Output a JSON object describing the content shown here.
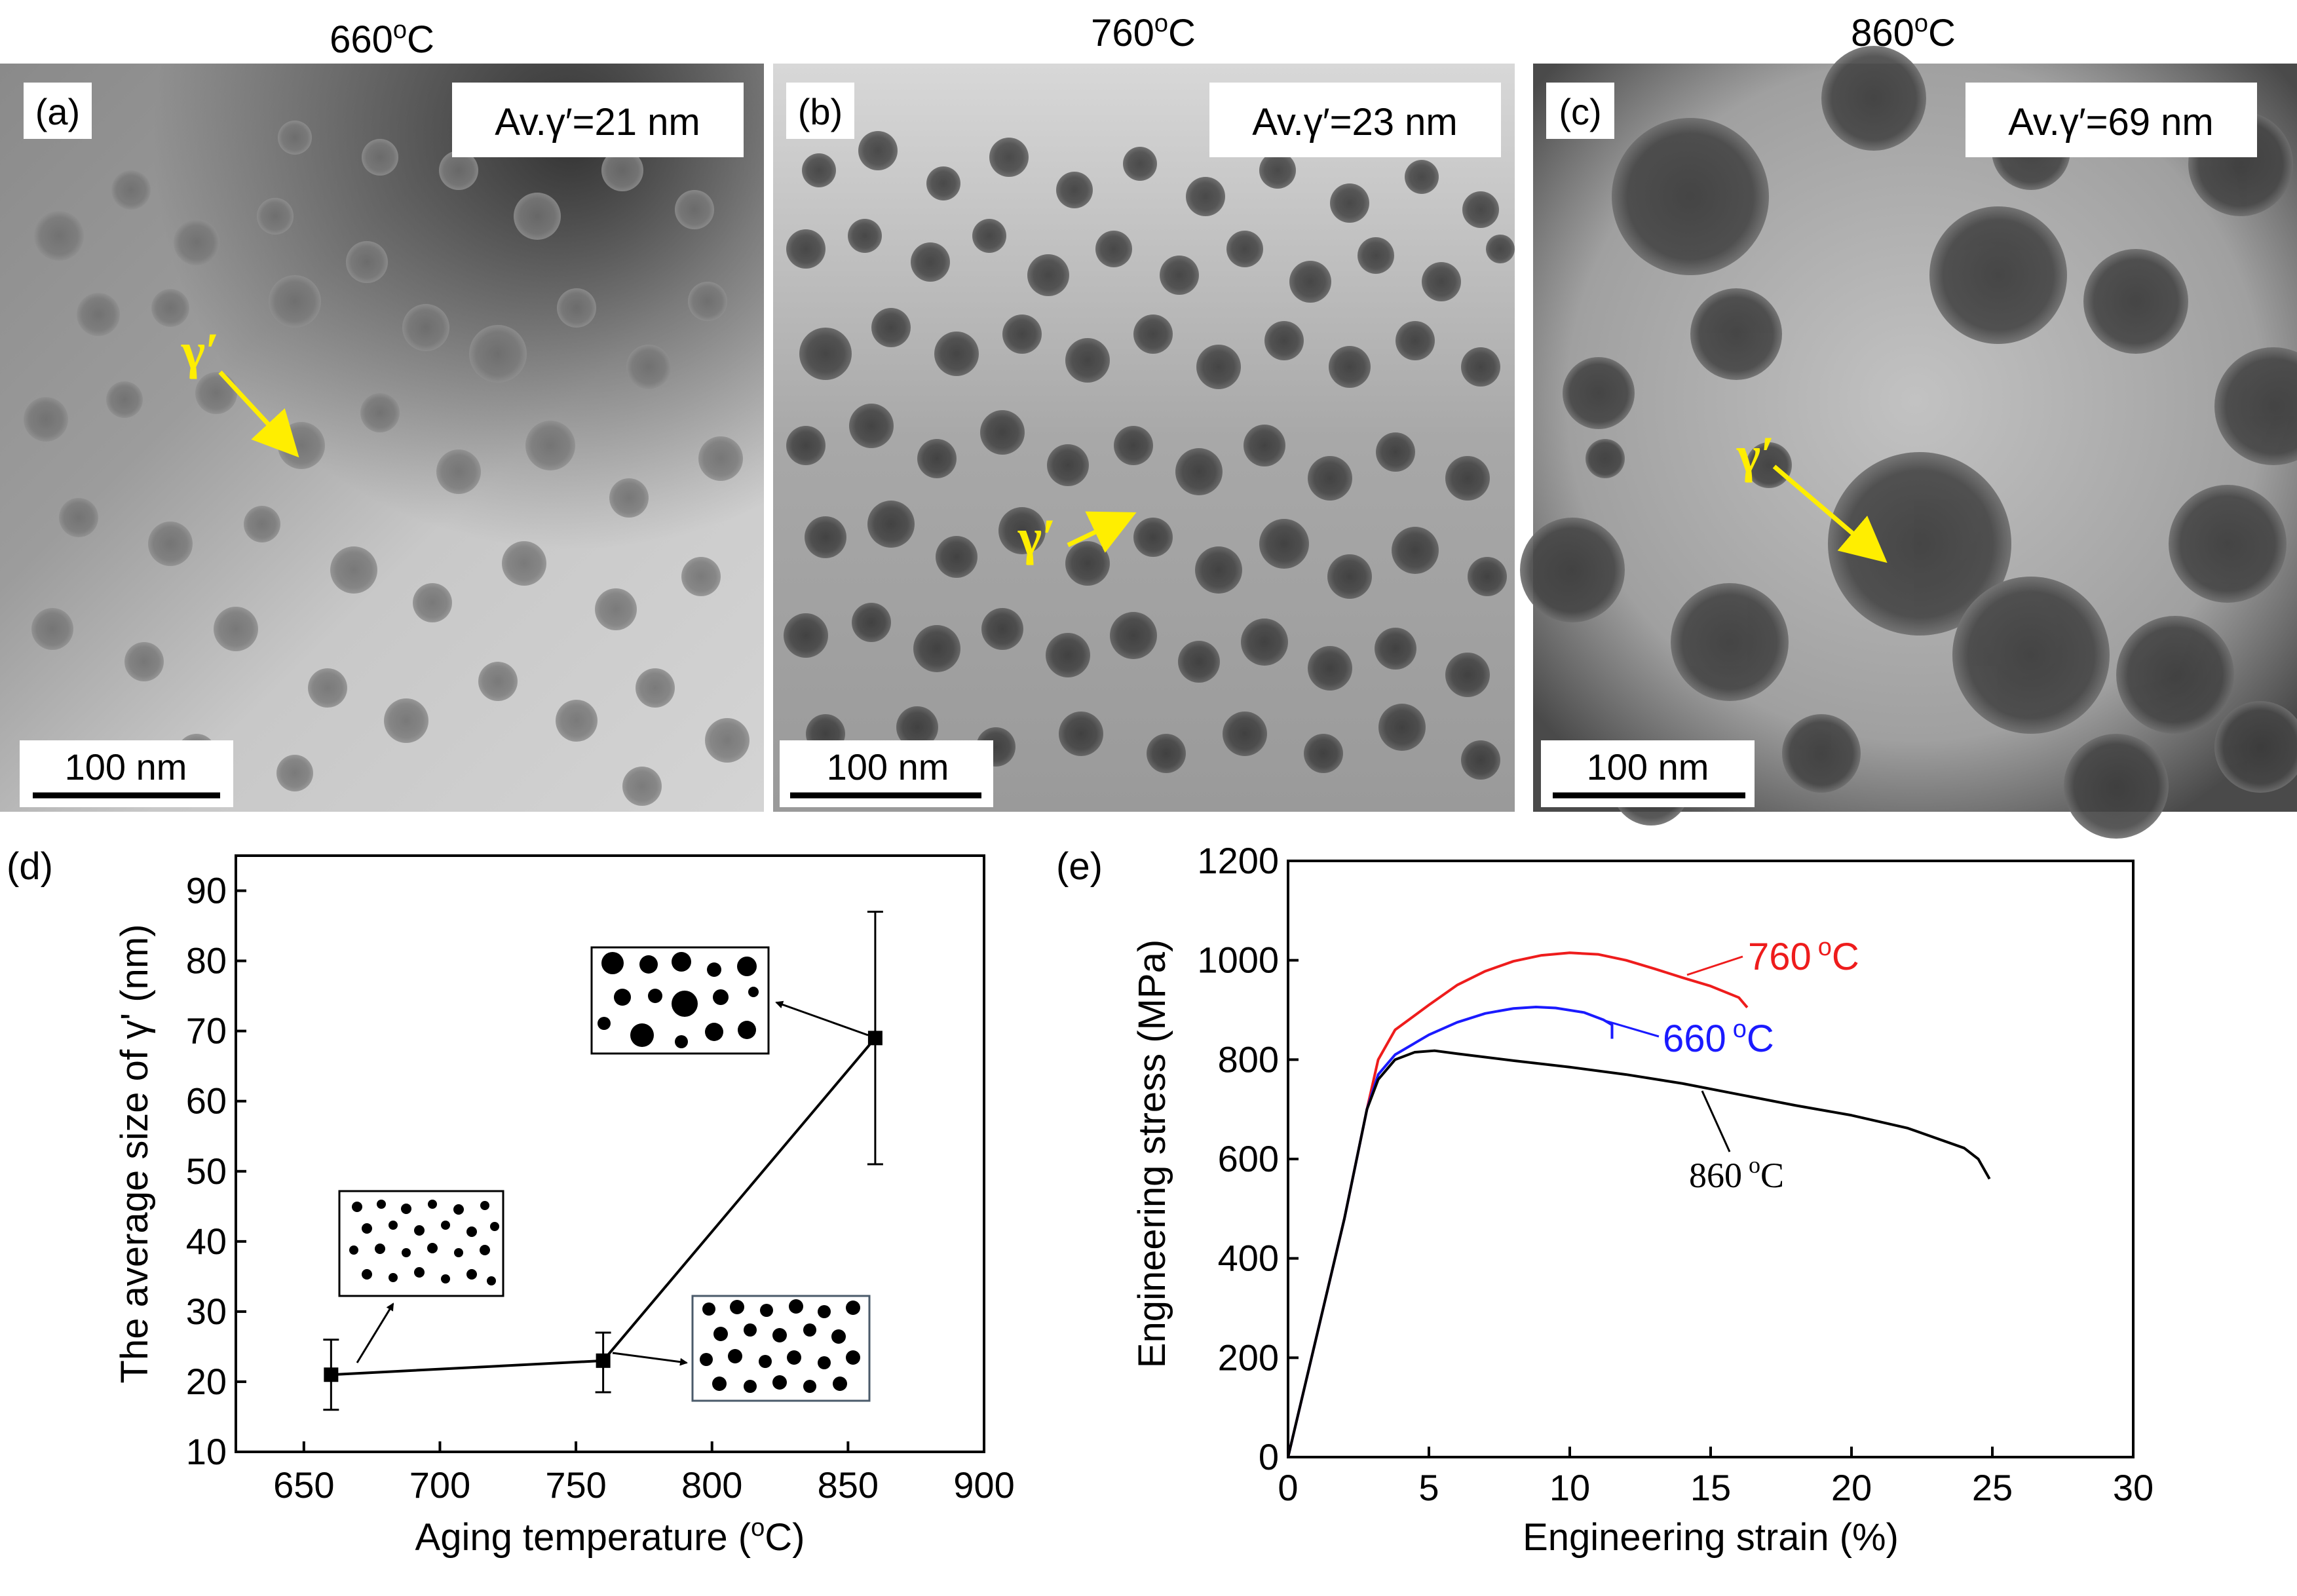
{
  "micrographs": [
    {
      "letter": "(a)",
      "temp": "660",
      "unit": "C",
      "sup": "o",
      "avg_label": "Av.γ′=21 nm",
      "scale_label": "100 nm",
      "phase_label": "γ′"
    },
    {
      "letter": "(b)",
      "temp": "760",
      "unit": "C",
      "sup": "o",
      "avg_label": "Av.γ′=23 nm",
      "scale_label": "100 nm",
      "phase_label": "γ′"
    },
    {
      "letter": "(c)",
      "temp": "860",
      "unit": "C",
      "sup": "o",
      "avg_label": "Av.γ′=69 nm",
      "scale_label": "100 nm",
      "phase_label": "γ′"
    }
  ],
  "colors": {
    "arrow": "#ffee00",
    "label_bg": "#ffffff",
    "red": "#ee1c1c",
    "blue": "#1a1aff",
    "black": "#000000"
  },
  "chart_data": [
    {
      "type": "scatter",
      "panel": "(d)",
      "x": [
        660,
        760,
        860
      ],
      "y": [
        21,
        23,
        69
      ],
      "err_low": [
        16,
        18.5,
        51
      ],
      "err_high": [
        26,
        27,
        87
      ],
      "xlabel_pre": "Aging temperature (",
      "xlabel_sup": "o",
      "xlabel_post": "C)",
      "ylabel": "The average size of γ' (nm)",
      "xlim": [
        625,
        900
      ],
      "ylim": [
        10,
        95
      ],
      "xticks": [
        650,
        700,
        750,
        800,
        850,
        900
      ],
      "yticks": [
        10,
        20,
        30,
        40,
        50,
        60,
        70,
        80,
        90
      ],
      "annotations": [
        "fine dispersed γ' particle schematic",
        "medium γ' particle schematic",
        "coarse γ' particle schematic"
      ]
    },
    {
      "type": "line",
      "panel": "(e)",
      "xlabel": "Engineering strain (%)",
      "ylabel": "Engineering stress (MPa)",
      "xlim": [
        0,
        30
      ],
      "ylim": [
        0,
        1200
      ],
      "xticks": [
        0,
        5,
        10,
        15,
        20,
        25,
        30
      ],
      "yticks": [
        0,
        200,
        400,
        600,
        800,
        1000,
        1200
      ],
      "series": [
        {
          "name": "760",
          "color": "red",
          "x": [
            0,
            1,
            2,
            2.8,
            3.2,
            3.8,
            5,
            6,
            7,
            8,
            9,
            10,
            11,
            12,
            13,
            14,
            15,
            16,
            16.3
          ],
          "y": [
            0,
            240,
            480,
            700,
            800,
            860,
            910,
            950,
            978,
            998,
            1010,
            1015,
            1012,
            1000,
            983,
            965,
            948,
            925,
            905
          ]
        },
        {
          "name": "660",
          "color": "blue",
          "x": [
            0,
            1,
            2,
            2.8,
            3.2,
            3.8,
            5,
            6,
            7,
            8,
            8.8,
            9.5,
            10.5,
            11.2,
            11.5,
            11.5
          ],
          "y": [
            0,
            240,
            480,
            700,
            770,
            810,
            850,
            875,
            893,
            903,
            906,
            904,
            895,
            880,
            870,
            842
          ]
        },
        {
          "name": "860",
          "color": "black",
          "x": [
            0,
            1,
            2,
            2.8,
            3.2,
            3.8,
            4.5,
            5.2,
            6,
            8,
            10,
            12,
            14,
            16,
            18,
            20,
            22,
            24,
            24.5,
            24.9
          ],
          "y": [
            0,
            240,
            480,
            700,
            760,
            800,
            815,
            818,
            812,
            798,
            785,
            770,
            752,
            730,
            708,
            688,
            662,
            622,
            600,
            560
          ]
        }
      ],
      "label_sup": "o",
      "label_unit": "C"
    }
  ]
}
